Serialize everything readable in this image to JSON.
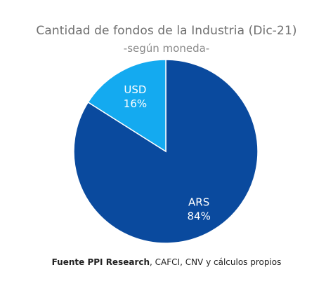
{
  "chart_data": {
    "type": "pie",
    "title": "Cantidad de fondos de la Industria (Dic-21)",
    "subtitle": "-según moneda-",
    "slices": [
      {
        "label": "ARS",
        "value": 84,
        "value_label": "84%",
        "color": "#0a4a9e"
      },
      {
        "label": "USD",
        "value": 16,
        "value_label": "16%",
        "color": "#14aaf0"
      }
    ],
    "legend": "none",
    "start_angle_deg": 0,
    "direction": "clockwise"
  },
  "source": {
    "bold": "Fuente PPI Research",
    "rest": ", CAFCI, CNV y cálculos propios"
  },
  "colors": {
    "slice_border": "#ffffff",
    "label_text": "#ffffff"
  }
}
